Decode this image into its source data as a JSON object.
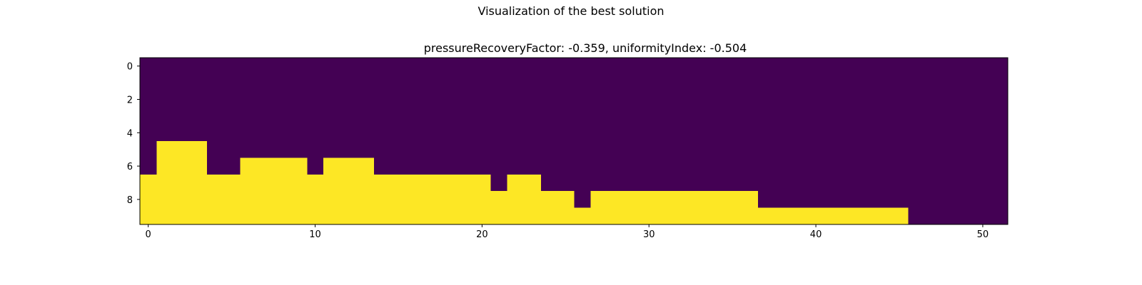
{
  "figure": {
    "suptitle": "Visualization of the best solution",
    "axes_title": "pressureRecoveryFactor: -0.359, uniformityIndex: -0.504"
  },
  "chart_data": {
    "type": "heatmap",
    "title": "pressureRecoveryFactor: -0.359, uniformityIndex: -0.504",
    "xlabel": "",
    "ylabel": "",
    "rows": 10,
    "cols": 52,
    "colormap": "viridis",
    "colors": {
      "0": "#440154",
      "1": "#fde725"
    },
    "xticks": [
      0,
      10,
      20,
      30,
      40,
      50
    ],
    "yticks": [
      0,
      2,
      4,
      6,
      8
    ],
    "filled_start_row_per_column": [
      7,
      5,
      5,
      5,
      7,
      7,
      6,
      6,
      6,
      6,
      7,
      6,
      6,
      6,
      7,
      7,
      7,
      7,
      7,
      7,
      7,
      8,
      7,
      7,
      8,
      8,
      9,
      8,
      8,
      8,
      8,
      8,
      8,
      8,
      8,
      8,
      8,
      9,
      9,
      9,
      9,
      9,
      9,
      9,
      9,
      9,
      10,
      10,
      10,
      10,
      10,
      10
    ],
    "grid": false
  }
}
